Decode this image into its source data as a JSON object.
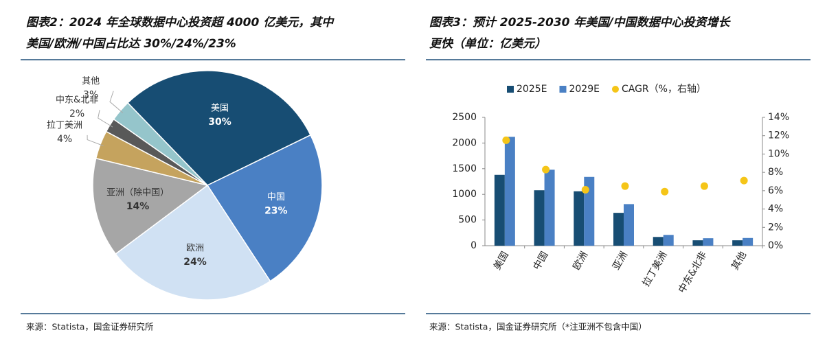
{
  "chart_data": [
    {
      "type": "pie",
      "title": [
        "图表2：2024 年全球数据中心投资超 4000 亿美元，其中",
        "美国/欧洲/中国占比达 30%/24%/23%"
      ],
      "categories": [
        "美国",
        "中国",
        "欧洲",
        "亚洲（除中国）",
        "拉丁美洲",
        "中东&北非",
        "其他"
      ],
      "values": [
        30,
        23,
        24,
        14,
        4,
        2,
        3
      ],
      "value_labels": [
        "30%",
        "23%",
        "24%",
        "14%",
        "4%",
        "2%",
        "3%"
      ],
      "colors": [
        "#174d73",
        "#4a80c4",
        "#d0e1f3",
        "#a6a6a6",
        "#c5a35e",
        "#595959",
        "#95c5cb"
      ],
      "start_angle": -44,
      "source": "来源：Statista，国金证券研究所"
    },
    {
      "type": "bar",
      "title": [
        "图表3：预计 2025-2030 年美国/中国数据中心投资增长",
        "更快（单位：亿美元）"
      ],
      "categories": [
        "美国",
        "中国",
        "欧洲",
        "亚洲",
        "拉丁美洲",
        "中东&北非",
        "其他"
      ],
      "series": [
        {
          "name": "2025E",
          "color": "#174d73",
          "values": [
            1380,
            1080,
            1060,
            640,
            170,
            105,
            105
          ]
        },
        {
          "name": "2029E",
          "color": "#4a80c4",
          "values": [
            2120,
            1480,
            1340,
            810,
            210,
            145,
            150
          ]
        },
        {
          "name": "CAGR（%，右轴）",
          "color": "#f5c518",
          "type": "scatter",
          "axis": "y2",
          "values": [
            11.5,
            8.3,
            6.1,
            6.5,
            5.9,
            6.5,
            7.1
          ]
        }
      ],
      "ylim": [
        0,
        2500
      ],
      "yticks": [
        0,
        500,
        1000,
        1500,
        2000,
        2500
      ],
      "y2lim": [
        0,
        14
      ],
      "y2ticks": [
        {
          "value": 0,
          "label": "0%"
        },
        {
          "value": 2,
          "label": "2%"
        },
        {
          "value": 4,
          "label": "4%"
        },
        {
          "value": 6,
          "label": "6%"
        },
        {
          "value": 8,
          "label": "8%"
        },
        {
          "value": 10,
          "label": "10%"
        },
        {
          "value": 12,
          "label": "12%"
        },
        {
          "value": 14,
          "label": "14%"
        }
      ],
      "legend": "top",
      "source": "来源：Statista，国金证券研究所（*注亚洲不包含中国）"
    }
  ]
}
